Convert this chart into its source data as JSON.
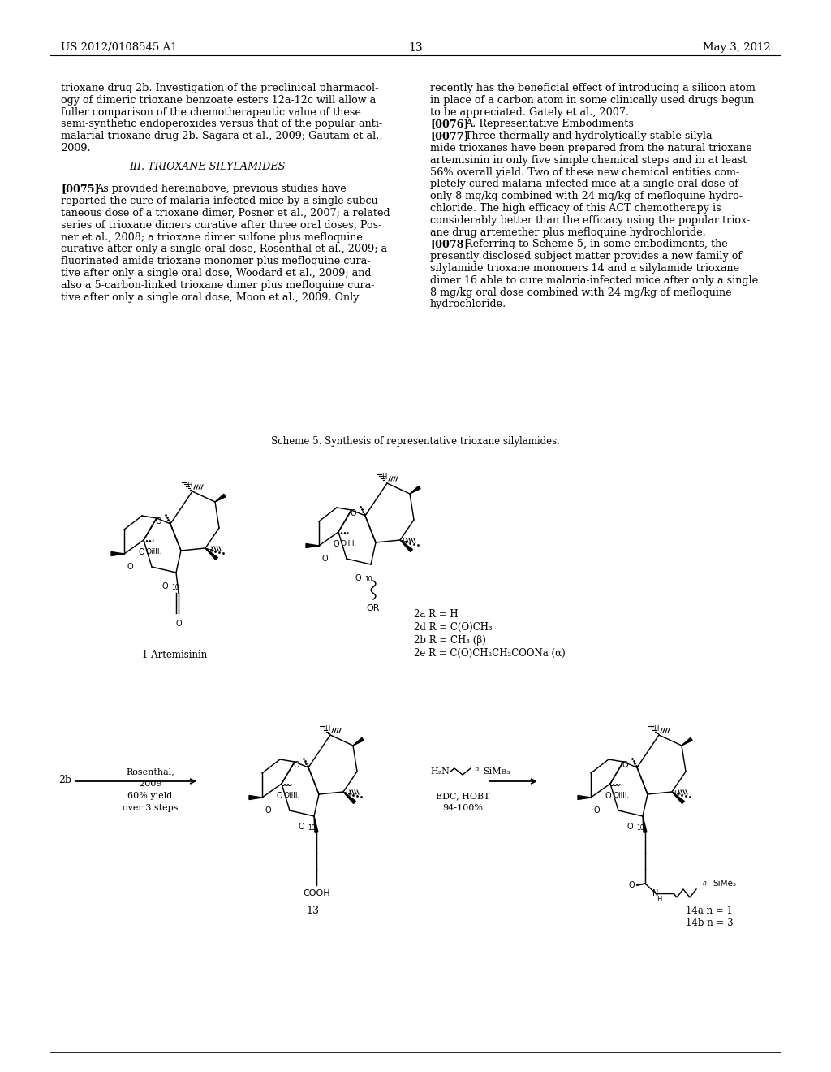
{
  "page_number": "13",
  "patent_number": "US 2012/0108545 A1",
  "patent_date": "May 3, 2012",
  "background_color": "#ffffff",
  "left_col": [
    "trioxane drug 2b. Investigation of the preclinical pharmacol-",
    "ogy of dimeric trioxane benzoate esters 12a-12c will allow a",
    "fuller comparison of the chemotherapeutic value of these",
    "semi-synthetic endoperoxides versus that of the popular anti-",
    "malarial trioxane drug 2b. Sagara et al., 2009; Gautam et al.,",
    "2009.",
    "",
    "III. TRIOXANE SILYLAMIDES",
    "",
    "[0075]__As provided hereinabove, previous studies have",
    "reported the cure of malaria-infected mice by a single subcu-",
    "taneous dose of a trioxane dimer, Posner et al., 2007; a related",
    "series of trioxane dimers curative after three oral doses, Pos-",
    "ner et al., 2008; a trioxane dimer sulfone plus mefloquine",
    "curative after only a single oral dose, Rosenthal et al., 2009; a",
    "fluorinated amide trioxane monomer plus mefloquine cura-",
    "tive after only a single oral dose, Woodard et al., 2009; and",
    "also a 5-carbon-linked trioxane dimer plus mefloquine cura-",
    "tive after only a single oral dose, Moon et al., 2009. Only"
  ],
  "right_col": [
    "recently has the beneficial effect of introducing a silicon atom",
    "in place of a carbon atom in some clinically used drugs begun",
    "to be appreciated. Gately et al., 2007.",
    "[0076]__A. Representative Embodiments",
    "[0077]__Three thermally and hydrolytically stable silyla-",
    "mide trioxanes have been prepared from the natural trioxane",
    "artemisinin in only five simple chemical steps and in at least",
    "56% overall yield. Two of these new chemical entities com-",
    "pletely cured malaria-infected mice at a single oral dose of",
    "only 8 mg/kg combined with 24 mg/kg of mefloquine hydro-",
    "chloride. The high efficacy of this ACT chemotherapy is",
    "considerably better than the efficacy using the popular triox-",
    "ane drug artemether plus mefloquine hydrochloride.",
    "[0078]__Referring to Scheme 5, in some embodiments, the",
    "presently disclosed subject matter provides a new family of",
    "silylamide trioxane monomers 14 and a silylamide trioxane",
    "dimer 16 able to cure malaria-infected mice after only a single",
    "8 mg/kg oral dose combined with 24 mg/kg of mefloquine",
    "hydrochloride."
  ],
  "scheme_caption": "Scheme 5. Synthesis of representative trioxane silylamides.",
  "labels_top": {
    "art": "1 Artemisinin",
    "c2a": "2a R = H",
    "c2d": "2d R = C(O)CH₃",
    "c2b_r": "2b R = CH₃ (β)",
    "c2e": "2e R = C(O)CH₂CH₂COONa (α)"
  },
  "labels_bot": {
    "c2b": "2b",
    "rosenthal": "Rosenthal,",
    "yr2009": "2009",
    "yield": "60% yield",
    "steps": "over 3 steps",
    "c13": "13",
    "h2n": "H₂N",
    "n_label": "n",
    "sime3": "SiMe₃",
    "edc": "EDC, HOBT",
    "pct": "94-100%",
    "cooh": "COOH",
    "o_label": "O",
    "h_label": "H",
    "c14a": "14a n = 1",
    "c14b": "14b n = 3",
    "ten": "10"
  }
}
